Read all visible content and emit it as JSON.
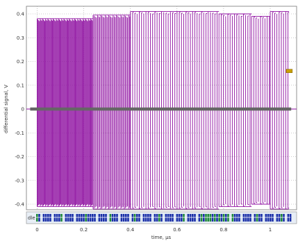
{
  "chart_data": {
    "type": "line",
    "title": "",
    "xlabel": "time, µs",
    "ylabel": "differential signal, V",
    "xlim": [
      -0.09,
      1.09
    ],
    "ylim": [
      -0.44,
      0.42
    ],
    "x_ticks": [
      "0",
      "0.2",
      "0.4",
      "0.6",
      "0.8",
      "1"
    ],
    "y_ticks": [
      "0.4",
      "0.3",
      "0.2",
      "0.1",
      "0",
      "-0.1",
      "-0.2",
      "-0.3",
      "-0.4"
    ],
    "grid": true,
    "series": [
      {
        "name": "",
        "color": "#8e0ea0",
        "style": "burst waveform (envelope)",
        "segments": [
          {
            "x0": 0.0,
            "x1": 0.24,
            "high": 0.38,
            "low": -0.41
          },
          {
            "x0": 0.24,
            "x1": 0.4,
            "high": 0.395,
            "low": -0.42
          },
          {
            "x0": 0.4,
            "x1": 0.78,
            "high": 0.41,
            "low": -0.42
          },
          {
            "x0": 0.78,
            "x1": 0.92,
            "high": 0.4,
            "low": -0.41
          },
          {
            "x0": 0.92,
            "x1": 1.0,
            "high": 0.39,
            "low": -0.4
          },
          {
            "x0": 1.0,
            "x1": 1.08,
            "high": 0.41,
            "low": -0.42
          }
        ],
        "idle_level": 0.0
      },
      {
        "name": "",
        "color": "#666666",
        "style": "flat line",
        "x": [
          -0.03,
          1.09
        ],
        "y": [
          0.0,
          0.0
        ]
      }
    ],
    "marker": {
      "x": 1.08,
      "y": 0.16,
      "color": "#c8a000"
    },
    "decode_bar": {
      "label": "dle",
      "colors": [
        "#1a2fa8",
        "#1f8a3a",
        "#d8e4f0"
      ]
    }
  }
}
